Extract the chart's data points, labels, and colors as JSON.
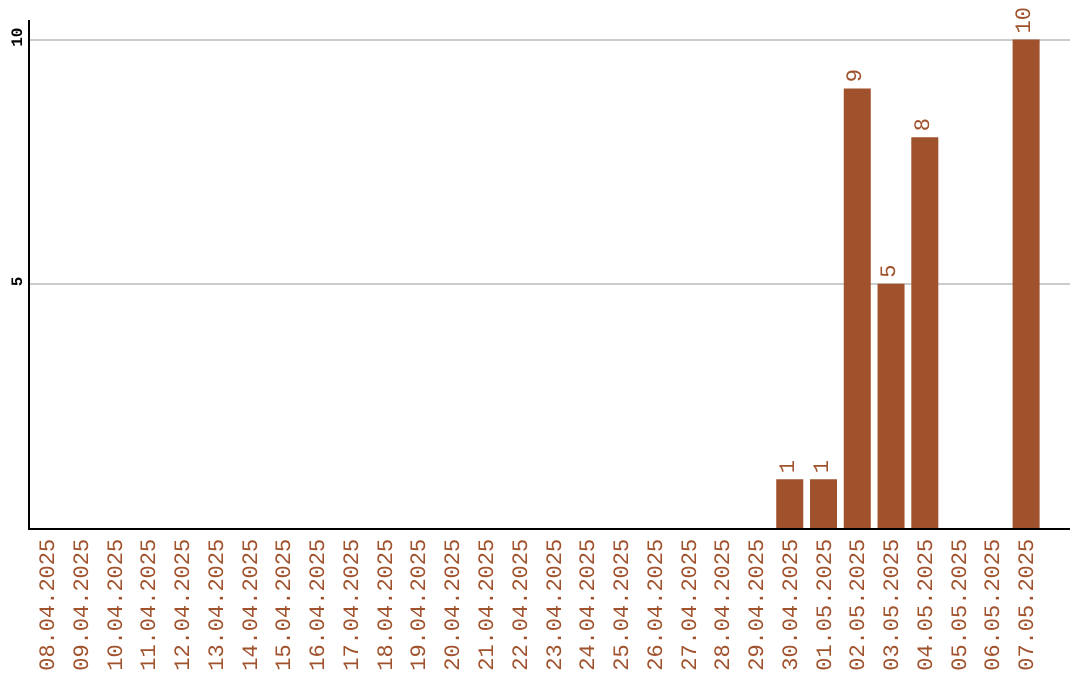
{
  "chart_data": {
    "type": "bar",
    "categories": [
      "08.04.2025",
      "09.04.2025",
      "10.04.2025",
      "11.04.2025",
      "12.04.2025",
      "13.04.2025",
      "14.04.2025",
      "15.04.2025",
      "16.04.2025",
      "17.04.2025",
      "18.04.2025",
      "19.04.2025",
      "20.04.2025",
      "21.04.2025",
      "22.04.2025",
      "23.04.2025",
      "24.04.2025",
      "25.04.2025",
      "26.04.2025",
      "27.04.2025",
      "28.04.2025",
      "29.04.2025",
      "30.04.2025",
      "01.05.2025",
      "02.05.2025",
      "03.05.2025",
      "04.05.2025",
      "05.05.2025",
      "06.05.2025",
      "07.05.2025"
    ],
    "values": [
      0,
      0,
      0,
      0,
      0,
      0,
      0,
      0,
      0,
      0,
      0,
      0,
      0,
      0,
      0,
      0,
      0,
      0,
      0,
      0,
      0,
      0,
      1,
      1,
      9,
      5,
      8,
      0,
      0,
      10
    ],
    "value_labels": [
      null,
      null,
      null,
      null,
      null,
      null,
      null,
      null,
      null,
      null,
      null,
      null,
      null,
      null,
      null,
      null,
      null,
      null,
      null,
      null,
      null,
      null,
      "1",
      "1",
      "9",
      "5",
      "8",
      null,
      null,
      "10"
    ],
    "color": "#a0522d",
    "ylim": [
      0,
      10.4
    ],
    "yticks": [
      5,
      10
    ],
    "grid": "y",
    "legend": false
  }
}
